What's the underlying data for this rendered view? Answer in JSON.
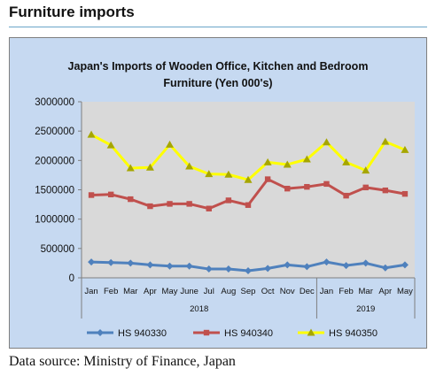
{
  "page": {
    "title": "Furniture imports",
    "source": "Data source: Ministry of Finance, Japan"
  },
  "colors": {
    "frame_bg": "#c6d9f1",
    "plot_bg": "#d9d9d9",
    "series": [
      "#4f81bd",
      "#c0504d",
      "#ffff00"
    ]
  },
  "chart_data": {
    "type": "line",
    "title": "Japan's Imports of  Wooden  Office, Kitchen and Bedroom Furniture (Yen 000's)",
    "title_lines": [
      "Japan's Imports of  Wooden  Office, Kitchen and Bedroom",
      "Furniture (Yen 000's)"
    ],
    "categories": [
      "Jan",
      "Feb",
      "Mar",
      "Apr",
      "May",
      "June",
      "Jul",
      "Aug",
      "Sep",
      "Oct",
      "Nov",
      "Dec",
      "Jan",
      "Feb",
      "Mar",
      "Apr",
      "May"
    ],
    "groups": [
      {
        "label": "2018",
        "start": 0,
        "end": 11
      },
      {
        "label": "2019",
        "start": 12,
        "end": 16
      }
    ],
    "ylim": [
      0,
      3000000
    ],
    "yticks": [
      "0",
      "500000",
      "1000000",
      "1500000",
      "2000000",
      "2500000",
      "3000000"
    ],
    "grid": false,
    "legend_position": "bottom",
    "series": [
      {
        "name": "HS 940330",
        "marker": "diamond",
        "values": [
          270000,
          260000,
          250000,
          220000,
          200000,
          200000,
          150000,
          150000,
          120000,
          160000,
          220000,
          190000,
          270000,
          210000,
          250000,
          170000,
          220000
        ]
      },
      {
        "name": "HS 940340",
        "marker": "square",
        "values": [
          1410000,
          1420000,
          1340000,
          1220000,
          1260000,
          1260000,
          1180000,
          1320000,
          1240000,
          1680000,
          1520000,
          1550000,
          1600000,
          1400000,
          1540000,
          1490000,
          1430000
        ]
      },
      {
        "name": "HS 940350",
        "marker": "triangle",
        "values": [
          2440000,
          2260000,
          1870000,
          1880000,
          2270000,
          1900000,
          1770000,
          1760000,
          1670000,
          1970000,
          1930000,
          2020000,
          2310000,
          1970000,
          1830000,
          2320000,
          2180000
        ]
      }
    ]
  }
}
